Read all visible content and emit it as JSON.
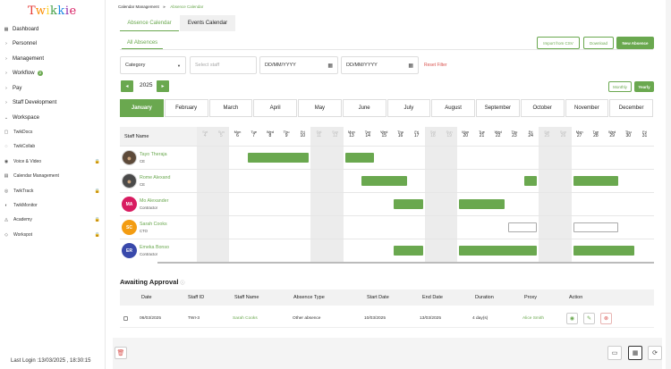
{
  "brand": {
    "logo": "Twikkie",
    "letters": [
      {
        "ch": "T",
        "color": "#e53935"
      },
      {
        "ch": "w",
        "color": "#fb8c00"
      },
      {
        "ch": "i",
        "color": "#fdd835"
      },
      {
        "ch": "k",
        "color": "#43a047"
      },
      {
        "ch": "k",
        "color": "#1e88e5"
      },
      {
        "ch": "i",
        "color": "#8e24aa"
      },
      {
        "ch": "e",
        "color": "#d81b60"
      }
    ]
  },
  "sidebar": {
    "items": [
      {
        "label": "Dashboard",
        "icon": "dashboard-icon",
        "glyph": "▦"
      },
      {
        "label": "Personnel",
        "icon": "chevron-right-icon",
        "glyph": "›"
      },
      {
        "label": "Management",
        "icon": "chevron-right-icon",
        "glyph": "›"
      },
      {
        "label": "Workflow",
        "icon": "chevron-right-icon",
        "glyph": "›",
        "badge": "2"
      },
      {
        "label": "Pay",
        "icon": "chevron-right-icon",
        "glyph": "›"
      },
      {
        "label": "Staff Development",
        "icon": "chevron-right-icon",
        "glyph": "›"
      },
      {
        "label": "Workspace",
        "icon": "chevron-down-icon",
        "glyph": "⌄"
      }
    ],
    "sub_items": [
      {
        "label": "TwikDocs",
        "icon": "document-icon",
        "glyph": "▢",
        "locked": false
      },
      {
        "label": "TwikCollab",
        "icon": "chat-icon",
        "glyph": "◌",
        "locked": false
      },
      {
        "label": "Voice & Video",
        "icon": "microphone-icon",
        "glyph": "◉",
        "locked": true
      },
      {
        "label": "Calendar Management",
        "icon": "calendar-icon",
        "glyph": "▤",
        "locked": false
      },
      {
        "label": "TwikTrack",
        "icon": "track-icon",
        "glyph": "◎",
        "locked": true
      },
      {
        "label": "TwikMonitor",
        "icon": "eye-icon",
        "glyph": "◐",
        "locked": false
      },
      {
        "label": "Academy",
        "icon": "academy-icon",
        "glyph": "◬",
        "locked": true
      },
      {
        "label": "Workspot",
        "icon": "workspot-icon",
        "glyph": "◇",
        "locked": true
      }
    ],
    "last_login": "Last Login :13/03/2025 , 18:30:15"
  },
  "breadcrumb": {
    "root": "Calendar Management",
    "current": "Absence Calendar"
  },
  "tabs": {
    "absence": "Absence Calendar",
    "events": "Events Calendar"
  },
  "subtab": "All Absences",
  "actions": {
    "import": "Import from CSV",
    "download": "Download",
    "new": "New Absence"
  },
  "filters": {
    "category": "Category",
    "staff_placeholder": "Select staff",
    "date_from": "DD/MM/YYYY",
    "date_to": "DD/MM/YYYY",
    "reset": "Reset Filter"
  },
  "year_nav": {
    "prev": "◂",
    "next": "▸",
    "year": "2025",
    "monthly": "Monthly",
    "yearly": "Yearly"
  },
  "months": [
    "January",
    "February",
    "March",
    "April",
    "May",
    "June",
    "July",
    "August",
    "September",
    "October",
    "November",
    "December"
  ],
  "selected_month": "January",
  "grid": {
    "staff_header": "Staff Name",
    "days": [
      {
        "d": "Sat",
        "n": "4",
        "we": true
      },
      {
        "d": "Sun",
        "n": "5",
        "we": true
      },
      {
        "d": "Mon",
        "n": "6"
      },
      {
        "d": "Tue",
        "n": "7"
      },
      {
        "d": "Wed",
        "n": "8"
      },
      {
        "d": "Thu",
        "n": "9"
      },
      {
        "d": "Fri",
        "n": "10"
      },
      {
        "d": "Sat",
        "n": "11",
        "we": true
      },
      {
        "d": "Sun",
        "n": "12",
        "we": true
      },
      {
        "d": "Mon",
        "n": "13"
      },
      {
        "d": "Tue",
        "n": "14"
      },
      {
        "d": "Wed",
        "n": "15"
      },
      {
        "d": "Thu",
        "n": "16"
      },
      {
        "d": "Fri",
        "n": "17"
      },
      {
        "d": "Sat",
        "n": "18",
        "we": true
      },
      {
        "d": "Sun",
        "n": "19",
        "we": true
      },
      {
        "d": "Mon",
        "n": "20"
      },
      {
        "d": "Tue",
        "n": "21"
      },
      {
        "d": "Wed",
        "n": "22"
      },
      {
        "d": "Thu",
        "n": "23"
      },
      {
        "d": "Fri",
        "n": "24"
      },
      {
        "d": "Sat",
        "n": "25",
        "we": true
      },
      {
        "d": "Sun",
        "n": "26",
        "we": true
      },
      {
        "d": "Mon",
        "n": "27"
      },
      {
        "d": "Tue",
        "n": "28"
      },
      {
        "d": "Wed",
        "n": "29"
      },
      {
        "d": "Thu",
        "n": "30"
      },
      {
        "d": "Fri",
        "n": "31"
      }
    ],
    "staff": [
      {
        "name": "Tayo Theraja",
        "role": "CE",
        "initials": "",
        "avatar_color": "#5d4a3a",
        "photo": true,
        "absences": [
          {
            "from": 7,
            "to": 10
          },
          {
            "from": 13,
            "to": 14
          }
        ]
      },
      {
        "name": "Rome Alexand",
        "role": "CE",
        "initials": "",
        "avatar_color": "#4a4a4a",
        "photo": true,
        "absences": [
          {
            "from": 14,
            "to": 16
          },
          {
            "from": 24,
            "to": 24
          },
          {
            "from": 27,
            "to": 29
          }
        ]
      },
      {
        "name": "Mo Alexander",
        "role": "Contractor",
        "initials": "MA",
        "avatar_color": "#d81b60",
        "photo": false,
        "absences": [
          {
            "from": 16,
            "to": 17
          },
          {
            "from": 20,
            "to": 22
          }
        ]
      },
      {
        "name": "Sarah Cooks",
        "role": "CTO",
        "initials": "SC",
        "avatar_color": "#f39c12",
        "photo": false,
        "absences": [
          {
            "from": 23,
            "to": 24,
            "pending": true
          },
          {
            "from": 27,
            "to": 29,
            "pending": true
          }
        ]
      },
      {
        "name": "Emeka Bonso",
        "role": "Contractor",
        "initials": "ER",
        "avatar_color": "#3949ab",
        "photo": false,
        "absences": [
          {
            "from": 16,
            "to": 17
          },
          {
            "from": 20,
            "to": 24
          },
          {
            "from": 27,
            "to": 30
          }
        ]
      }
    ]
  },
  "approval": {
    "title": "Awaiting Approval",
    "info_icon": "ⓘ",
    "headers": [
      "Date",
      "Staff ID",
      "Staff Name",
      "Absence Type",
      "Start Date",
      "End Date",
      "Duration",
      "Proxy",
      "Action"
    ],
    "rows": [
      {
        "date": "06/03/2025",
        "staff_id": "TWI-3",
        "staff_name": "Sarah Cooks",
        "type": "Other absence",
        "start": "10/03/2025",
        "end": "13/03/2025",
        "duration": "4 day(s)",
        "proxy": "Alice Smith"
      }
    ]
  },
  "colors": {
    "accent": "#6aa84f",
    "danger": "#d9534f"
  }
}
